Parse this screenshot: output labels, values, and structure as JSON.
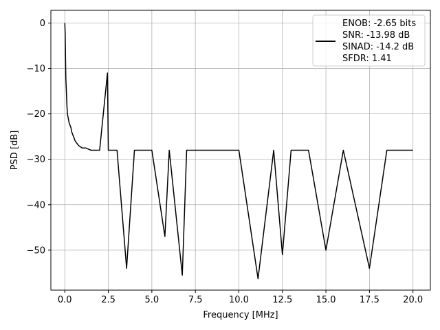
{
  "chart_data": {
    "type": "line",
    "title": "",
    "xlabel": "Frequency [MHz]",
    "ylabel": "PSD [dB]",
    "xlim": [
      -0.8,
      21.0
    ],
    "ylim": [
      -58.8,
      2.8
    ],
    "xticks": [
      0.0,
      2.5,
      5.0,
      7.5,
      10.0,
      12.5,
      15.0,
      17.5,
      20.0
    ],
    "xtick_labels": [
      "0.0",
      "2.5",
      "5.0",
      "7.5",
      "10.0",
      "12.5",
      "15.0",
      "17.5",
      "20.0"
    ],
    "yticks": [
      0,
      -10,
      -20,
      -30,
      -40,
      -50
    ],
    "ytick_labels": [
      "0",
      "−10",
      "−20",
      "−30",
      "−40",
      "−50"
    ],
    "grid": true,
    "legend_position": "upper right",
    "series_color": "#000000",
    "legend": {
      "entries": [
        "ENOB: -2.65 bits",
        "SNR: -13.98 dB",
        "SINAD: -14.2 dB",
        "SFDR: 1.41"
      ]
    },
    "series": [
      {
        "x": [
          0.0,
          0.02,
          0.04,
          0.06,
          0.08,
          0.1,
          0.12,
          0.15,
          0.2,
          0.25,
          0.3,
          0.35,
          0.4,
          0.5,
          0.6,
          0.8,
          1.0,
          1.2,
          1.5,
          2.0,
          2.45,
          2.5,
          3.0,
          3.55,
          4.0,
          5.0,
          5.75,
          6.0,
          6.75,
          7.0,
          8.0,
          9.0,
          10.0,
          11.1,
          12.0,
          12.5,
          13.0,
          14.0,
          15.0,
          16.0,
          17.5,
          18.5,
          19.0,
          20.0
        ],
        "y": [
          0.0,
          -2.0,
          -7.0,
          -12.0,
          -14.0,
          -16.0,
          -18.0,
          -20.0,
          -21.0,
          -22.0,
          -22.5,
          -23.0,
          -24.0,
          -25.0,
          -26.0,
          -27.0,
          -27.5,
          -27.5,
          -28.0,
          -28.0,
          -11.0,
          -28.0,
          -28.0,
          -54.0,
          -28.0,
          -28.0,
          -47.0,
          -28.0,
          -55.5,
          -28.0,
          -28.0,
          -28.0,
          -28.0,
          -56.3,
          -28.0,
          -51.0,
          -28.0,
          -28.0,
          -50.0,
          -28.0,
          -54.0,
          -28.0,
          -28.0,
          -28.0
        ]
      }
    ]
  }
}
